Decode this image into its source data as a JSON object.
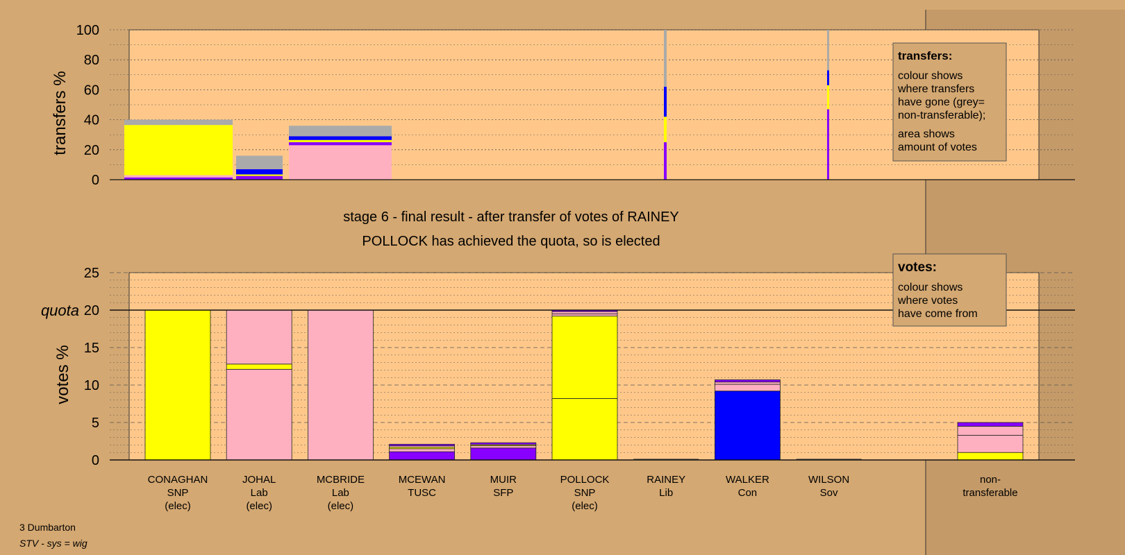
{
  "chart_data": [
    {
      "type": "bar",
      "subtype": "stacked",
      "ylabel": "transfers %",
      "ylim": [
        0,
        100
      ],
      "yticks": [
        0,
        20,
        40,
        60,
        80,
        100
      ],
      "grid": true,
      "legend": {
        "position": "top-right",
        "title": "transfers:",
        "lines1": [
          "colour shows",
          "where transfers",
          "have gone (grey=",
          "non-transferable);"
        ],
        "lines2": [
          "area shows",
          "amount of votes"
        ]
      },
      "columns": [
        {
          "source": "CONAGHAN",
          "segments": [
            {
              "color": "#8800ff",
              "value": 1.5
            },
            {
              "color": "#ffb0c0",
              "value": 1.5
            },
            {
              "color": "#ffff00",
              "value": 33.5
            },
            {
              "color": "#aaaaaa",
              "value": 3.5
            }
          ]
        },
        {
          "source": "JOHAL",
          "segments": [
            {
              "color": "#8800ff",
              "value": 2.5
            },
            {
              "color": "#ffff00",
              "value": 1
            },
            {
              "color": "#0000ff",
              "value": 3.5
            },
            {
              "color": "#aaaaaa",
              "value": 9
            }
          ]
        },
        {
          "source": "MCBRIDE",
          "segments": [
            {
              "color": "#ffb0c0",
              "value": 23
            },
            {
              "color": "#8800ff",
              "value": 2
            },
            {
              "color": "#ffff00",
              "value": 1.5
            },
            {
              "color": "#0000ff",
              "value": 2.5
            },
            {
              "color": "#aaaaaa",
              "value": 7
            }
          ]
        },
        {
          "source": "RAINEY",
          "segments": [
            {
              "color": "#8800ff",
              "value": 25
            },
            {
              "color": "#ffff00",
              "value": 17
            },
            {
              "color": "#0000ff",
              "value": 20
            },
            {
              "color": "#aaaaaa",
              "value": 38
            }
          ]
        },
        {
          "source": "WILSON",
          "segments": [
            {
              "color": "#8800ff",
              "value": 47
            },
            {
              "color": "#ffff00",
              "value": 16
            },
            {
              "color": "#0000ff",
              "value": 10
            },
            {
              "color": "#aaaaaa",
              "value": 27
            }
          ]
        }
      ]
    },
    {
      "type": "bar",
      "subtype": "stacked",
      "ylabel": "votes %",
      "ylim": [
        0,
        25
      ],
      "yticks": [
        0,
        5,
        10,
        15,
        20,
        25
      ],
      "quota": 20,
      "quota_label": "quota",
      "grid": true,
      "legend": {
        "position": "top-right",
        "title": "votes:",
        "lines": [
          "colour shows",
          "where votes",
          "have come from"
        ]
      },
      "categories": [
        {
          "lines": [
            "CONAGHAN",
            "SNP",
            "(elec)"
          ],
          "segments": [
            {
              "color": "#ffff00",
              "value": 20
            }
          ]
        },
        {
          "lines": [
            "JOHAL",
            "Lab",
            "(elec)"
          ],
          "segments": [
            {
              "color": "#ffb0c0",
              "value": 12.1
            },
            {
              "color": "#ffff00",
              "value": 0.7
            },
            {
              "color": "#ffb0c0",
              "value": 7.2
            }
          ]
        },
        {
          "lines": [
            "MCBRIDE",
            "Lab",
            "(elec)"
          ],
          "segments": [
            {
              "color": "#ffb0c0",
              "value": 20
            }
          ]
        },
        {
          "lines": [
            "MCEWAN",
            "TUSC"
          ],
          "segments": [
            {
              "color": "#8800ff",
              "value": 1.1
            },
            {
              "color": "#ffb0c0",
              "value": 0.4
            },
            {
              "color": "#ffff00",
              "value": 0.2
            },
            {
              "color": "#ffb0c0",
              "value": 0.2
            },
            {
              "color": "#8800ff",
              "value": 0.2
            }
          ]
        },
        {
          "lines": [
            "MUIR",
            "SFP"
          ],
          "segments": [
            {
              "color": "#8800ff",
              "value": 1.6
            },
            {
              "color": "#ffb0c0",
              "value": 0.3
            },
            {
              "color": "#ffff00",
              "value": 0.15
            },
            {
              "color": "#8800ff",
              "value": 0.25
            }
          ]
        },
        {
          "lines": [
            "POLLOCK",
            "SNP",
            "(elec)"
          ],
          "segments": [
            {
              "color": "#ffff00",
              "value": 8.2
            },
            {
              "color": "#ffff00",
              "value": 11
            },
            {
              "color": "#ffb0c0",
              "value": 0.3
            },
            {
              "color": "#ffb0c0",
              "value": 0.3
            },
            {
              "color": "#8800ff",
              "value": 0.2
            }
          ]
        },
        {
          "lines": [
            "RAINEY",
            "Lib"
          ],
          "segments": []
        },
        {
          "lines": [
            "WALKER",
            "Con"
          ],
          "segments": [
            {
              "color": "#0000ff",
              "value": 9.2
            },
            {
              "color": "#ffb0c0",
              "value": 0.9
            },
            {
              "color": "#ffb0c0",
              "value": 0.3
            },
            {
              "color": "#8800ff",
              "value": 0.3
            }
          ]
        },
        {
          "lines": [
            "WILSON",
            "Sov"
          ],
          "segments": []
        },
        {
          "lines": [
            "non-",
            "transferable"
          ],
          "segments": [
            {
              "color": "#ffff00",
              "value": 1
            },
            {
              "color": "#ffb0c0",
              "value": 2.3
            },
            {
              "color": "#ffb0c0",
              "value": 1.2
            },
            {
              "color": "#8800ff",
              "value": 0.5
            }
          ]
        }
      ]
    }
  ],
  "stage_title": "stage 6 - final result - after transfer of votes of RAINEY",
  "stage_subtitle": "POLLOCK has achieved the quota, so is elected",
  "footer": {
    "line1": "3 Dumbarton",
    "line2": "STV - sys = wig"
  },
  "colors": {
    "background": "#d4a872",
    "plot_background": "#ffc88a",
    "non_transferable": "#aaaaaa"
  }
}
